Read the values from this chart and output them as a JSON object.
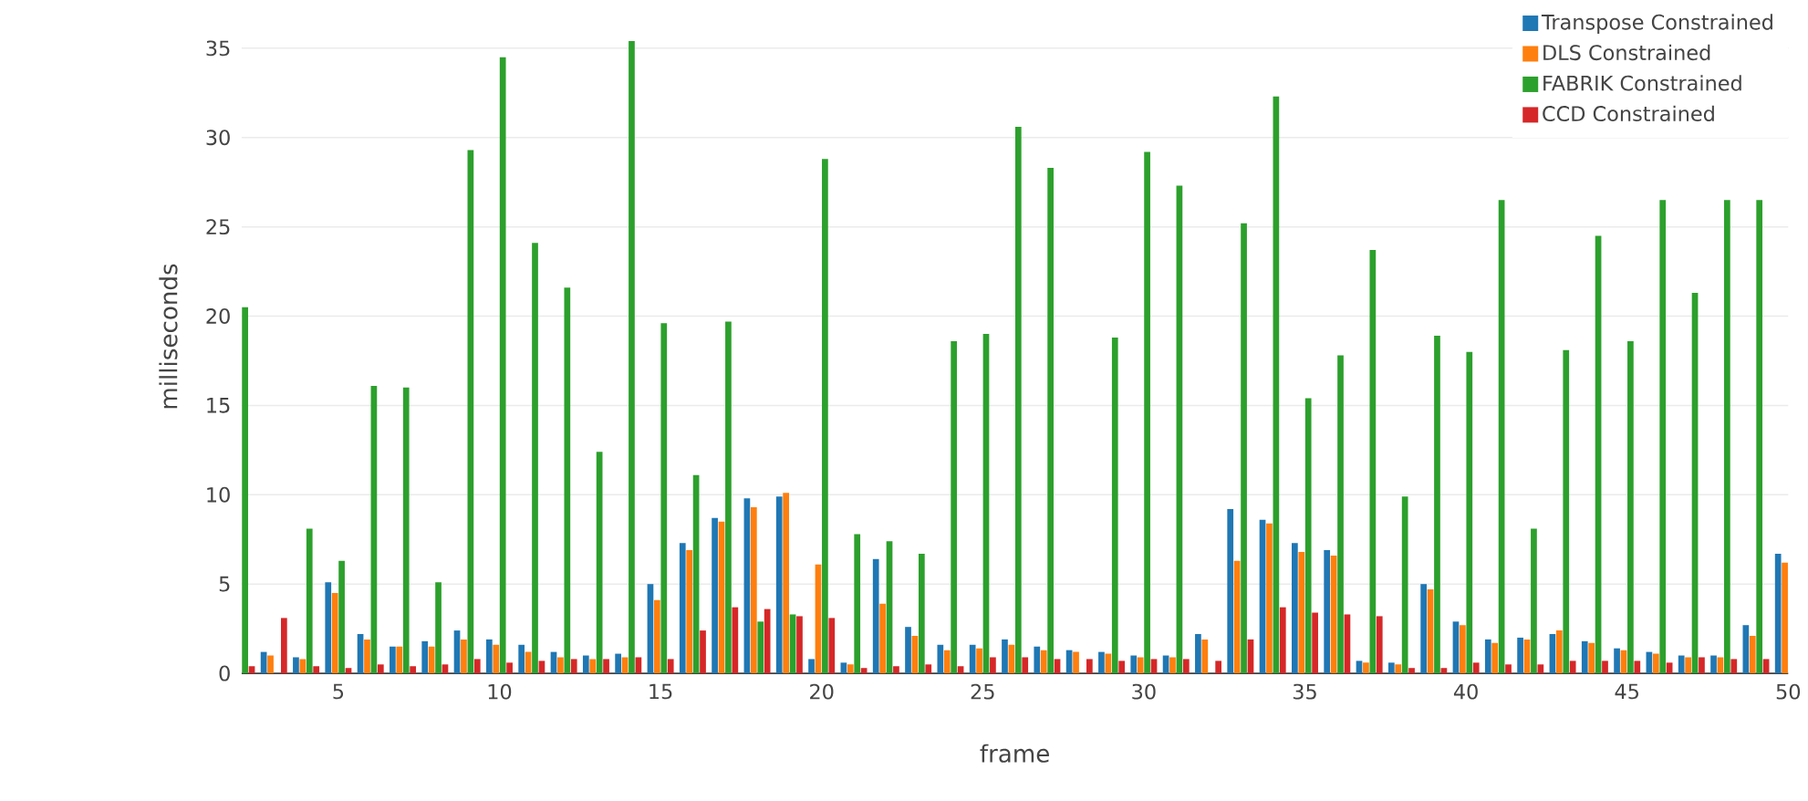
{
  "chart_data": {
    "type": "bar",
    "xlabel": "frame",
    "ylabel": "milliseconds",
    "x": [
      2,
      3,
      4,
      5,
      6,
      7,
      8,
      9,
      10,
      11,
      12,
      13,
      14,
      15,
      16,
      17,
      18,
      19,
      20,
      21,
      22,
      23,
      24,
      25,
      26,
      27,
      28,
      29,
      30,
      31,
      32,
      33,
      34,
      35,
      36,
      37,
      38,
      39,
      40,
      41,
      42,
      43,
      44,
      45,
      46,
      47,
      48,
      49,
      50
    ],
    "series": [
      {
        "name": "Transpose Constrained",
        "color": "#1f77b4",
        "values": [
          null,
          1.2,
          0.9,
          5.1,
          2.2,
          1.5,
          1.8,
          2.4,
          1.9,
          1.6,
          1.2,
          1.0,
          1.1,
          5.0,
          7.3,
          8.7,
          9.8,
          9.9,
          0.8,
          0.6,
          6.4,
          2.6,
          1.6,
          1.6,
          1.9,
          1.5,
          1.3,
          1.2,
          1.0,
          1.0,
          2.2,
          9.2,
          8.6,
          7.3,
          6.9,
          0.7,
          0.6,
          5.0,
          2.9,
          1.9,
          2.0,
          2.2,
          1.8,
          1.4,
          1.2,
          1.0,
          1.0,
          2.7,
          6.7
        ]
      },
      {
        "name": "DLS Constrained",
        "color": "#ff7f0e",
        "values": [
          null,
          1.0,
          0.8,
          4.5,
          1.9,
          1.5,
          1.5,
          1.9,
          1.6,
          1.2,
          0.9,
          0.8,
          0.9,
          4.1,
          6.9,
          8.5,
          9.3,
          10.1,
          6.1,
          0.5,
          3.9,
          2.1,
          1.3,
          1.4,
          1.6,
          1.3,
          1.2,
          1.1,
          0.9,
          0.9,
          1.9,
          6.3,
          8.4,
          6.8,
          6.6,
          0.6,
          0.5,
          4.7,
          2.7,
          1.7,
          1.9,
          2.4,
          1.7,
          1.3,
          1.1,
          0.9,
          0.9,
          2.1,
          6.2
        ]
      },
      {
        "name": "FABRIK Constrained",
        "color": "#2ca02c",
        "values": [
          20.5,
          null,
          8.1,
          6.3,
          16.1,
          16.0,
          5.1,
          29.3,
          34.5,
          24.1,
          21.6,
          12.4,
          35.4,
          19.6,
          11.1,
          19.7,
          2.9,
          3.3,
          28.8,
          7.8,
          7.4,
          6.7,
          18.6,
          19.0,
          30.6,
          28.3,
          null,
          18.8,
          29.2,
          27.3,
          null,
          25.2,
          32.3,
          15.4,
          17.8,
          23.7,
          9.9,
          18.9,
          18.0,
          26.5,
          8.1,
          18.1,
          24.5,
          18.6,
          26.5,
          21.3,
          26.5,
          26.5,
          null
        ]
      },
      {
        "name": "CCD Constrained",
        "color": "#d62728",
        "values": [
          0.4,
          3.1,
          0.4,
          0.3,
          0.5,
          0.4,
          0.5,
          0.8,
          0.6,
          0.7,
          0.8,
          0.8,
          0.9,
          0.8,
          2.4,
          3.7,
          3.6,
          3.2,
          3.1,
          0.3,
          0.4,
          0.5,
          0.4,
          0.9,
          0.9,
          0.8,
          0.8,
          0.7,
          0.8,
          0.8,
          0.7,
          1.9,
          3.7,
          3.4,
          3.3,
          3.2,
          0.3,
          0.3,
          0.6,
          0.5,
          0.5,
          0.7,
          0.7,
          0.7,
          0.6,
          0.9,
          0.8,
          0.8,
          null
        ]
      }
    ],
    "xlim": [
      2,
      50
    ],
    "ylim": [
      0,
      37.7
    ],
    "xticks": [
      5,
      10,
      15,
      20,
      25,
      30,
      35,
      40,
      45,
      50
    ],
    "yticks": [
      0,
      5,
      10,
      15,
      20,
      25,
      30,
      35
    ],
    "grid": "y",
    "legend": "top right"
  }
}
